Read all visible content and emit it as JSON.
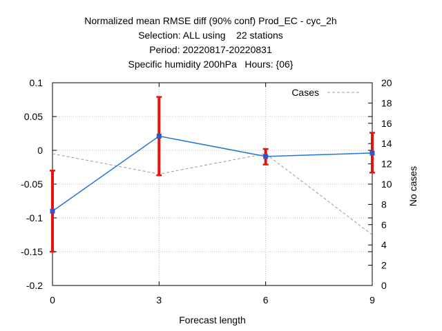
{
  "chart_data": {
    "type": "line",
    "title_lines": [
      "Normalized mean RMSE diff (90% conf) Prod_EC - cyc_2h",
      "Selection: ALL using    22 stations",
      "Period: 20220817-20220831",
      "Specific humidity 200hPa   Hours: {06}"
    ],
    "xlabel": "Forecast length",
    "ylabel": "",
    "y2label": "No cases",
    "x_ticks": [
      "0",
      "3",
      "6",
      "9"
    ],
    "x_values": [
      0,
      3,
      6,
      9
    ],
    "xlim": [
      0,
      9
    ],
    "ylim": [
      -0.2,
      0.1
    ],
    "y_ticks": [
      "-0.2",
      "-0.15",
      "-0.1",
      "-0.05",
      "0",
      "0.05",
      "0.1"
    ],
    "y2lim": [
      0,
      20
    ],
    "y2_ticks": [
      "0",
      "2",
      "4",
      "6",
      "8",
      "10",
      "12",
      "14",
      "16",
      "18",
      "20"
    ],
    "grid": true,
    "legend_position": "top-right",
    "series": [
      {
        "name": "",
        "axis": "left",
        "color": "#1f77d4",
        "marker_color": "#3355cc",
        "values": [
          -0.09,
          0.021,
          -0.009,
          -0.004
        ],
        "error_low": [
          -0.15,
          -0.037,
          -0.021,
          -0.033
        ],
        "error_high": [
          -0.03,
          0.079,
          0.002,
          0.026
        ],
        "error_color": "#e8120c"
      },
      {
        "name": "Cases",
        "axis": "right",
        "style": "dashed",
        "color": "#999999",
        "values": [
          13,
          11,
          13,
          5
        ]
      }
    ]
  }
}
